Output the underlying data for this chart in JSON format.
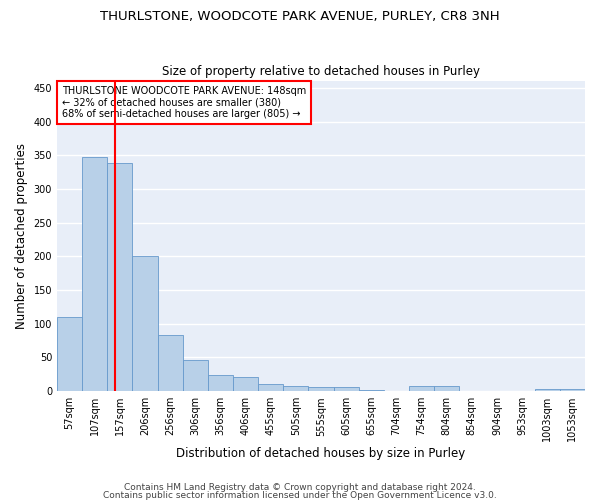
{
  "title": "THURLSTONE, WOODCOTE PARK AVENUE, PURLEY, CR8 3NH",
  "subtitle": "Size of property relative to detached houses in Purley",
  "xlabel": "Distribution of detached houses by size in Purley",
  "ylabel": "Number of detached properties",
  "bin_labels": [
    "57sqm",
    "107sqm",
    "157sqm",
    "206sqm",
    "256sqm",
    "306sqm",
    "356sqm",
    "406sqm",
    "455sqm",
    "505sqm",
    "555sqm",
    "605sqm",
    "655sqm",
    "704sqm",
    "754sqm",
    "804sqm",
    "854sqm",
    "904sqm",
    "953sqm",
    "1003sqm",
    "1053sqm"
  ],
  "bar_values": [
    110,
    347,
    338,
    200,
    83,
    47,
    24,
    21,
    10,
    7,
    6,
    6,
    2,
    0,
    7,
    7,
    1,
    0,
    0,
    4,
    4
  ],
  "bar_color": "#b8d0e8",
  "bar_edge_color": "#6699cc",
  "annotation_line1": "THURLSTONE WOODCOTE PARK AVENUE: 148sqm",
  "annotation_line2": "← 32% of detached houses are smaller (380)",
  "annotation_line3": "68% of semi-detached houses are larger (805) →",
  "annotation_box_color": "white",
  "annotation_border_color": "red",
  "red_line_x": 1.82,
  "ylim": [
    0,
    460
  ],
  "yticks": [
    0,
    50,
    100,
    150,
    200,
    250,
    300,
    350,
    400,
    450
  ],
  "footer1": "Contains HM Land Registry data © Crown copyright and database right 2024.",
  "footer2": "Contains public sector information licensed under the Open Government Licence v3.0.",
  "bg_color": "#ffffff",
  "plot_bg_color": "#e8eef8",
  "grid_color": "#ffffff",
  "title_fontsize": 9.5,
  "subtitle_fontsize": 8.5,
  "axis_label_fontsize": 8.5,
  "tick_fontsize": 7,
  "footer_fontsize": 6.5,
  "annotation_fontsize": 7
}
